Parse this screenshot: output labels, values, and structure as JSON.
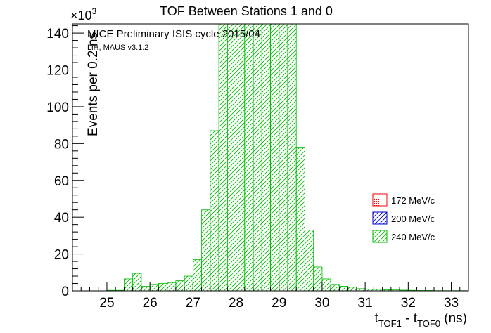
{
  "chart_data": {
    "type": "bar",
    "title": "TOF Between Stations 1 and 0",
    "ylabel": "Events per 0.2 ns",
    "xlabel": {
      "main": "t",
      "sub1": "TOF1",
      "mid": " - t",
      "sub2": "TOF0",
      "unit": " (ns)"
    },
    "y_multiplier": {
      "base": "×10",
      "exp": "3"
    },
    "annotations": {
      "line1": "MICE Preliminary ISIS cycle 2015/04",
      "line2": "LiH, MAUS v3.1.2"
    },
    "xlim": [
      24.2,
      33.4
    ],
    "ylim": [
      0,
      145
    ],
    "bin_width": 0.2,
    "x_ticks": [
      25,
      26,
      27,
      28,
      29,
      30,
      31,
      32,
      33
    ],
    "x_tick_labels": [
      "25",
      "26",
      "27",
      "28",
      "29",
      "30",
      "31",
      "32",
      "33"
    ],
    "y_ticks": [
      0,
      20,
      40,
      60,
      80,
      100,
      120,
      140
    ],
    "y_tick_labels": [
      "0",
      "20",
      "40",
      "60",
      "80",
      "100",
      "120",
      "140"
    ],
    "grid": false,
    "legend_placement": "right",
    "bin_edges_start": 24.2,
    "series": [
      {
        "name": "172 MeV/c",
        "color": "#ff0000",
        "fill": "dots",
        "values": []
      },
      {
        "name": "200 MeV/c",
        "color": "#0000cc",
        "fill": "hatch",
        "values": []
      },
      {
        "name": "240 MeV/c",
        "color": "#00bb00",
        "fill": "hatch",
        "values": [
          0,
          0,
          0,
          0,
          0.3,
          0.3,
          6.5,
          9.5,
          2.5,
          3.5,
          4.0,
          4.5,
          5.5,
          8.0,
          17,
          44,
          87,
          147,
          147,
          147,
          147,
          147,
          147,
          147,
          147,
          147,
          78,
          33,
          13,
          6.5,
          3.5,
          2.5,
          2.0,
          1.2,
          1.0,
          0.8,
          0.6,
          0.5,
          0.4,
          0.3,
          0.2,
          0.2,
          0.1,
          0.1,
          0.1,
          0.1
        ]
      }
    ]
  }
}
